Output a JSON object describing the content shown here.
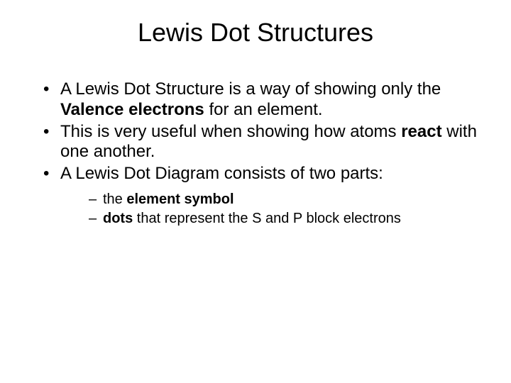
{
  "slide": {
    "title": "Lewis Dot Structures",
    "bullets": [
      {
        "pre": "A Lewis Dot Structure is a way of showing only the ",
        "bold": "Valence electrons",
        "post": " for an element."
      },
      {
        "pre": "This is very useful when showing how atoms ",
        "bold": "react",
        "post": " with one another."
      },
      {
        "pre": "A Lewis Dot Diagram consists of two parts:",
        "bold": "",
        "post": ""
      }
    ],
    "subBullets": [
      {
        "pre": "the ",
        "bold": "element symbol",
        "post": ""
      },
      {
        "pre": "",
        "bold": "dots",
        "post": " that represent the S and P block electrons"
      }
    ]
  },
  "style": {
    "background_color": "#ffffff",
    "text_color": "#000000",
    "title_fontsize": 36,
    "bullet_fontsize": 24,
    "sub_bullet_fontsize": 20,
    "font_family": "Arial"
  }
}
